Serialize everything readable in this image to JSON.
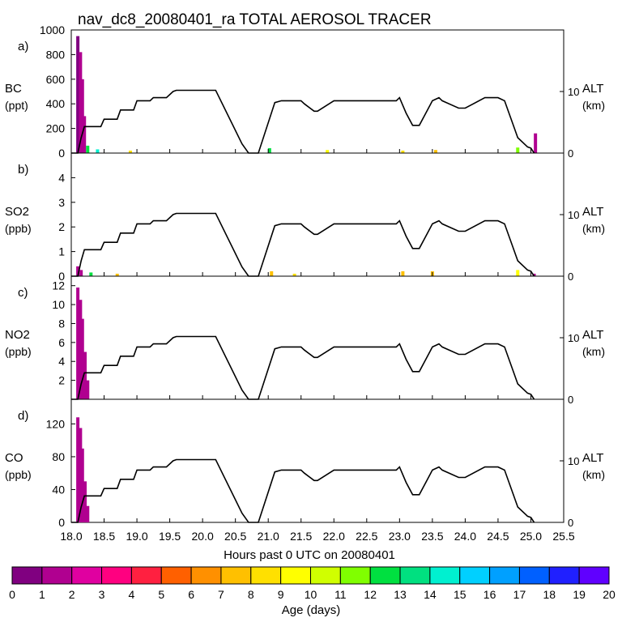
{
  "title": "nav_dc8_20080401_ra TOTAL AEROSOL TRACER",
  "chart_data": [
    {
      "type": "bar",
      "panel_letter": "a)",
      "species": "BC",
      "units": "(ppt)",
      "ylim": [
        0,
        1000
      ],
      "yticks": [
        0,
        200,
        400,
        600,
        800,
        1000
      ],
      "bars": [
        {
          "x": 18.1,
          "value": 950,
          "age": 0
        },
        {
          "x": 18.14,
          "value": 820,
          "age": 1
        },
        {
          "x": 18.17,
          "value": 600,
          "age": 1
        },
        {
          "x": 18.2,
          "value": 300,
          "age": 1
        },
        {
          "x": 18.25,
          "value": 60,
          "age": 12
        },
        {
          "x": 18.4,
          "value": 30,
          "age": 14
        },
        {
          "x": 18.9,
          "value": 20,
          "age": 8
        },
        {
          "x": 21.02,
          "value": 40,
          "age": 12
        },
        {
          "x": 21.9,
          "value": 25,
          "age": 9
        },
        {
          "x": 23.05,
          "value": 20,
          "age": 8
        },
        {
          "x": 23.55,
          "value": 25,
          "age": 7
        },
        {
          "x": 24.8,
          "value": 45,
          "age": 11
        },
        {
          "x": 25.07,
          "value": 160,
          "age": 1
        }
      ]
    },
    {
      "type": "bar",
      "panel_letter": "b)",
      "species": "SO2",
      "units": "(ppb)",
      "ylim": [
        0,
        5
      ],
      "yticks": [
        0,
        1,
        2,
        3,
        4
      ],
      "bars": [
        {
          "x": 18.1,
          "value": 0.4,
          "age": 1
        },
        {
          "x": 18.15,
          "value": 0.25,
          "age": 1
        },
        {
          "x": 18.3,
          "value": 0.15,
          "age": 12
        },
        {
          "x": 18.7,
          "value": 0.1,
          "age": 7
        },
        {
          "x": 21.05,
          "value": 0.2,
          "age": 7
        },
        {
          "x": 21.4,
          "value": 0.1,
          "age": 8
        },
        {
          "x": 23.05,
          "value": 0.2,
          "age": 7
        },
        {
          "x": 23.5,
          "value": 0.2,
          "age": 7
        },
        {
          "x": 24.8,
          "value": 0.25,
          "age": 9
        },
        {
          "x": 25.05,
          "value": 0.1,
          "age": 1
        }
      ]
    },
    {
      "type": "bar",
      "panel_letter": "c)",
      "species": "NO2",
      "units": "(ppb)",
      "ylim": [
        0,
        13
      ],
      "yticks": [
        2,
        4,
        6,
        8,
        10,
        12
      ],
      "bars": [
        {
          "x": 18.1,
          "value": 11.8,
          "age": 1
        },
        {
          "x": 18.14,
          "value": 10.5,
          "age": 1
        },
        {
          "x": 18.17,
          "value": 8.5,
          "age": 1
        },
        {
          "x": 18.21,
          "value": 5.0,
          "age": 1
        },
        {
          "x": 18.25,
          "value": 2.0,
          "age": 1
        }
      ]
    },
    {
      "type": "bar",
      "panel_letter": "d)",
      "species": "CO",
      "units": "(ppb)",
      "ylim": [
        0,
        150
      ],
      "yticks": [
        0,
        40,
        80,
        120
      ],
      "bars": [
        {
          "x": 18.1,
          "value": 128,
          "age": 1
        },
        {
          "x": 18.14,
          "value": 115,
          "age": 1
        },
        {
          "x": 18.17,
          "value": 90,
          "age": 1
        },
        {
          "x": 18.21,
          "value": 50,
          "age": 1
        },
        {
          "x": 18.25,
          "value": 20,
          "age": 1
        }
      ]
    },
    {
      "type": "line",
      "name": "aircraft altitude",
      "ylabel": "ALT",
      "yunits": "(km)",
      "ylim": [
        0,
        20
      ],
      "yticks": [
        0,
        10
      ],
      "x": [
        18.0,
        18.05,
        18.1,
        18.15,
        18.2,
        18.45,
        18.5,
        18.7,
        18.75,
        18.95,
        19.0,
        19.2,
        19.25,
        19.45,
        19.55,
        19.6,
        20.2,
        20.6,
        20.7,
        20.85,
        21.1,
        21.2,
        21.5,
        21.55,
        21.7,
        21.75,
        22.0,
        22.5,
        22.95,
        23.0,
        23.1,
        23.2,
        23.3,
        23.4,
        23.5,
        23.6,
        23.65,
        23.9,
        24.0,
        24.3,
        24.5,
        24.6,
        24.8,
        24.95,
        25.0,
        25.05
      ],
      "y": [
        0,
        0,
        0,
        2.5,
        4.3,
        4.3,
        5.5,
        5.5,
        7,
        7,
        8.5,
        8.5,
        9,
        9,
        10,
        10.2,
        10.2,
        1.5,
        0,
        0,
        8.2,
        8.5,
        8.5,
        8,
        6.8,
        6.8,
        8.5,
        8.5,
        8.5,
        9,
        6.5,
        4.5,
        4.5,
        6.5,
        8.5,
        9,
        8.5,
        7.3,
        7.3,
        9,
        9,
        8.5,
        2.5,
        1,
        0.8,
        0
      ]
    }
  ],
  "x_axis": {
    "label": "Hours past 0 UTC on 20080401",
    "range": [
      18.0,
      25.5
    ],
    "ticks": [
      "18.0",
      "18.5",
      "19.0",
      "19.5",
      "20.0",
      "20.5",
      "21.0",
      "21.5",
      "22.0",
      "22.5",
      "23.0",
      "23.5",
      "24.0",
      "24.5",
      "25.0",
      "25.5"
    ]
  },
  "colorbar": {
    "label": "Age (days)",
    "ticks": [
      "0",
      "1",
      "2",
      "3",
      "4",
      "5",
      "6",
      "7",
      "8",
      "9",
      "10",
      "11",
      "12",
      "13",
      "14",
      "15",
      "16",
      "17",
      "18",
      "19",
      "20"
    ],
    "colors": [
      "#800080",
      "#b00090",
      "#e000a0",
      "#ff0080",
      "#ff2040",
      "#ff6000",
      "#ff9000",
      "#ffc000",
      "#ffe000",
      "#ffff00",
      "#d0ff00",
      "#80ff00",
      "#00e040",
      "#00e080",
      "#00f0d0",
      "#00d0ff",
      "#00a0ff",
      "#0060ff",
      "#2020ff",
      "#6000ff"
    ]
  }
}
